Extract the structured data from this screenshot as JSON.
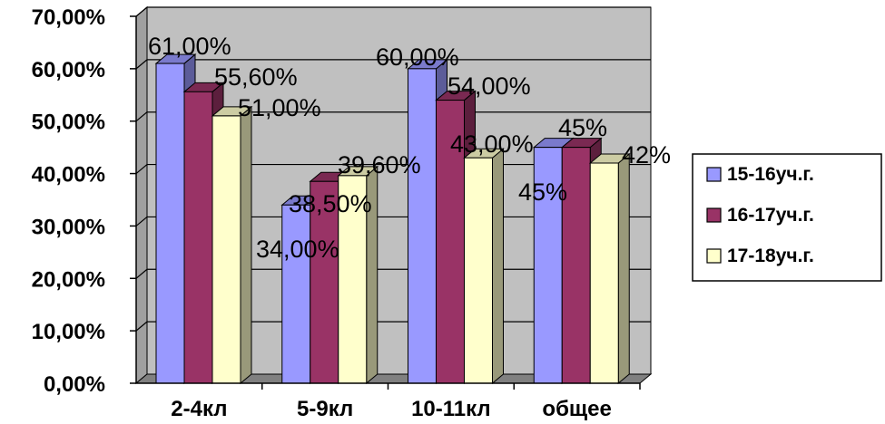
{
  "colors": {
    "wall": "#c0c0c0",
    "grid": "#000000",
    "floor": "#808080",
    "s1": "#9999ff",
    "s2": "#993366",
    "s3": "#ffffcc"
  },
  "chart_data": {
    "type": "bar",
    "title": "",
    "xlabel": "",
    "ylabel": "",
    "ylim": [
      0,
      70
    ],
    "yticks": [
      "0,00%",
      "10,00%",
      "20,00%",
      "30,00%",
      "40,00%",
      "50,00%",
      "60,00%",
      "70,00%"
    ],
    "categories": [
      "2-4кл",
      "5-9кл",
      "10-11кл",
      "общее"
    ],
    "grid": true,
    "legend_position": "right",
    "series": [
      {
        "name": "15-16уч.г.",
        "values": [
          61,
          34,
          60,
          45
        ],
        "labels": [
          "61,00%",
          "34,00%",
          "60,00%",
          "45%"
        ]
      },
      {
        "name": "16-17уч.г.",
        "values": [
          55.6,
          38.5,
          54,
          45
        ],
        "labels": [
          "55,60%",
          "38,50%",
          "54,00%",
          "45%"
        ]
      },
      {
        "name": "17-18уч.г.",
        "values": [
          51,
          39.6,
          43,
          42
        ],
        "labels": [
          "51,00%",
          "39,60%",
          "43,00%",
          "42%"
        ]
      }
    ]
  }
}
